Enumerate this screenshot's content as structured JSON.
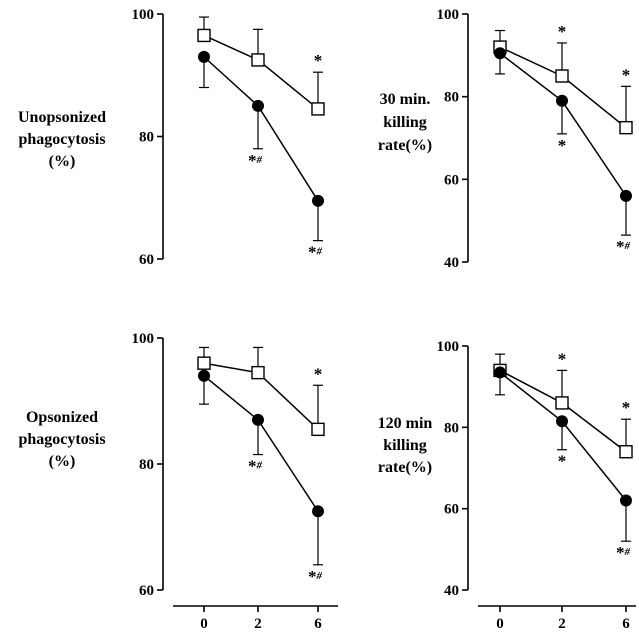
{
  "chart_data": [
    {
      "type": "line",
      "ylabel": [
        "Unopsonized",
        "phagocytosis",
        "(%)"
      ],
      "ylim": [
        60,
        100
      ],
      "yticks": [
        "60",
        "80",
        "100"
      ],
      "x": [
        0,
        2,
        6
      ],
      "series": [
        {
          "marker": "open-square",
          "values": [
            96.5,
            92.5,
            84.5
          ],
          "err_up": [
            3,
            5,
            6
          ],
          "err_down": [
            0,
            0,
            0
          ],
          "annotations": [
            "",
            "",
            "*"
          ]
        },
        {
          "marker": "filled-circle",
          "values": [
            93,
            85,
            69.5
          ],
          "err_up": [
            0,
            0,
            0
          ],
          "err_down": [
            5,
            7,
            6.5
          ],
          "annotations": [
            "",
            "*#",
            "*#"
          ]
        }
      ]
    },
    {
      "type": "line",
      "ylabel": [
        "30 min.",
        "killing",
        "rate(%)"
      ],
      "ylim": [
        40,
        100
      ],
      "yticks": [
        "40",
        "60",
        "80",
        "100"
      ],
      "x": [
        0,
        2,
        6
      ],
      "series": [
        {
          "marker": "open-square",
          "values": [
            92,
            85,
            72.5
          ],
          "err_up": [
            4,
            8,
            10
          ],
          "err_down": [
            0,
            0,
            0
          ],
          "annotations": [
            "",
            "*",
            "*"
          ]
        },
        {
          "marker": "filled-circle",
          "values": [
            90.5,
            79,
            56
          ],
          "err_up": [
            0,
            0,
            0
          ],
          "err_down": [
            5,
            8,
            9.5
          ],
          "annotations": [
            "",
            "*",
            "*#"
          ]
        }
      ]
    },
    {
      "type": "line",
      "ylabel": [
        "Opsonized",
        "phagocytosis",
        "(%)"
      ],
      "ylim": [
        60,
        100
      ],
      "yticks": [
        "60",
        "80",
        "100"
      ],
      "x": [
        0,
        2,
        6
      ],
      "series": [
        {
          "marker": "open-square",
          "values": [
            96,
            94.5,
            85.5
          ],
          "err_up": [
            2.5,
            4,
            7
          ],
          "err_down": [
            0,
            0,
            0
          ],
          "annotations": [
            "",
            "",
            "*"
          ]
        },
        {
          "marker": "filled-circle",
          "values": [
            94,
            87,
            72.5
          ],
          "err_up": [
            0,
            0,
            0
          ],
          "err_down": [
            4.5,
            5.5,
            8.5
          ],
          "annotations": [
            "",
            "*#",
            "*#"
          ]
        }
      ]
    },
    {
      "type": "line",
      "ylabel": [
        "120 min",
        "killing",
        "rate(%)"
      ],
      "ylim": [
        40,
        100
      ],
      "yticks": [
        "40",
        "60",
        "80",
        "100"
      ],
      "x": [
        0,
        2,
        6
      ],
      "series": [
        {
          "marker": "open-square",
          "values": [
            94,
            86,
            74
          ],
          "err_up": [
            4,
            8,
            8
          ],
          "err_down": [
            0,
            0,
            0
          ],
          "annotations": [
            "",
            "*",
            "*"
          ]
        },
        {
          "marker": "filled-circle",
          "values": [
            93.5,
            81.5,
            62
          ],
          "err_up": [
            0,
            0,
            0
          ],
          "err_down": [
            5.5,
            7,
            10
          ],
          "annotations": [
            "",
            "*",
            "*#"
          ]
        }
      ]
    }
  ],
  "x_axis": {
    "ticks": [
      "0",
      "2",
      "6"
    ]
  }
}
